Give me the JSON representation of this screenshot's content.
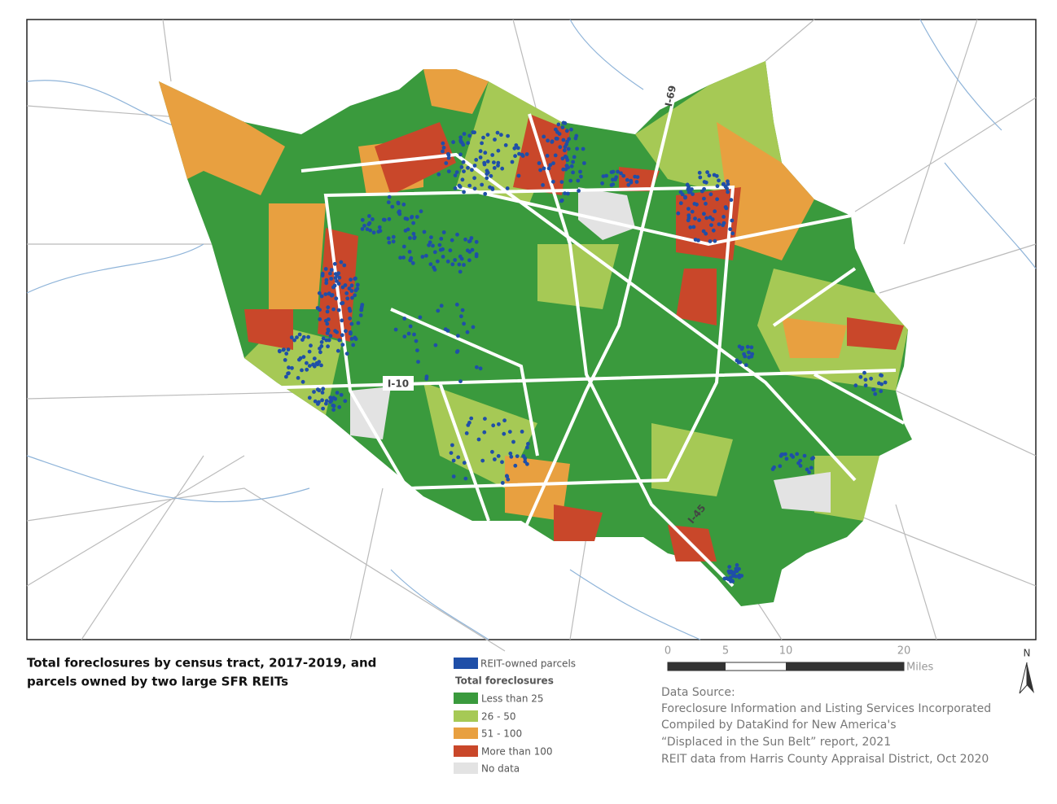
{
  "title": [
    "Total foreclosures by census tract, 2017-2019, and",
    "parcels owned by two large SFR REITs"
  ],
  "highways": [
    "I-69",
    "I-10",
    "I-45"
  ],
  "legend": {
    "reit": "REIT-owned parcels",
    "heading": "Total foreclosures",
    "items": [
      "Less than 25",
      "26 - 50",
      "51 - 100",
      "More than 100",
      "No data"
    ]
  },
  "scale": {
    "ticks": [
      "0",
      "5",
      "10",
      "20"
    ],
    "unit": "Miles"
  },
  "north": "N",
  "source": [
    "Data Source:",
    "Foreclosure Information and Listing Services Incorporated",
    "Compiled by DataKind for New America's",
    "“Displaced in the Sun Belt” report, 2021",
    "REIT data from Harris County Appraisal District, Oct 2020"
  ]
}
